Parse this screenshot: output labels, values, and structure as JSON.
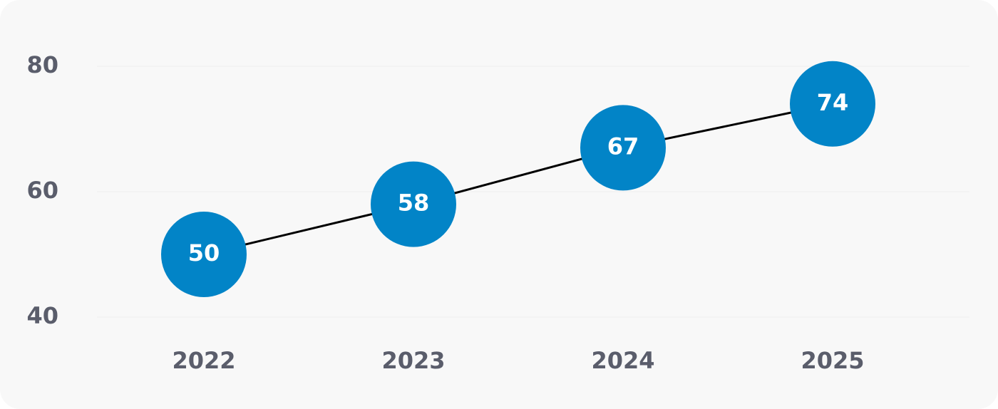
{
  "chart_data": {
    "type": "line",
    "categories": [
      "2022",
      "2023",
      "2024",
      "2025"
    ],
    "values": [
      50,
      58,
      67,
      74
    ],
    "color": "#0284c7",
    "ylim": [
      40,
      80
    ],
    "yticks": [
      40,
      60,
      80
    ],
    "grid": true
  }
}
